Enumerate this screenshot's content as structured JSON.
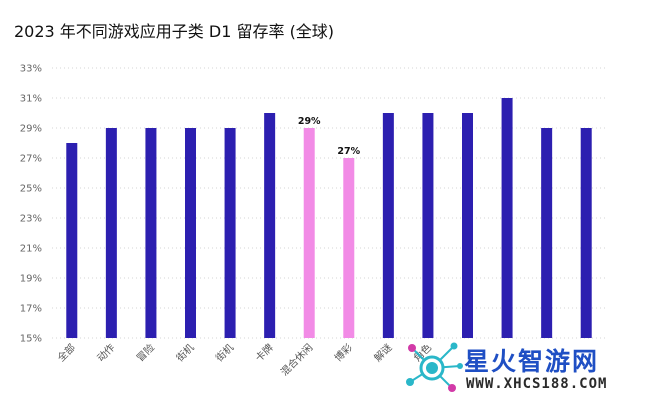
{
  "title": "2023 年不同游戏应用子类 D1 留存率 (全球)",
  "colors": {
    "bar": "#2c1fb0",
    "highlight": "#f28be6",
    "grid": "#d6d6d6",
    "watermark_blue": "#1f4fc4",
    "watermark_teal": "#2ab7c9"
  },
  "watermark": {
    "brand": "星火智游网",
    "url": "WWW.XHCS188.COM"
  },
  "chart_data": {
    "type": "bar",
    "title": "2023 年不同游戏应用子类 D1 留存率 (全球)",
    "xlabel": "",
    "ylabel": "",
    "ylim": [
      15,
      33
    ],
    "yticks": [
      15,
      17,
      19,
      21,
      23,
      25,
      27,
      29,
      31,
      33
    ],
    "ytick_labels": [
      "15%",
      "17%",
      "19%",
      "21%",
      "23%",
      "25%",
      "27%",
      "29%",
      "31%",
      "33%"
    ],
    "grid": true,
    "categories": [
      "全部",
      "动作",
      "冒险",
      "街机",
      "街机",
      "卡牌",
      "混合休闲",
      "博彩",
      "解谜",
      "角色",
      "",
      "",
      "",
      ""
    ],
    "values": [
      28,
      29,
      29,
      29,
      29,
      30,
      29,
      27,
      30,
      30,
      30,
      31,
      29,
      29
    ],
    "highlighted": [
      6,
      7
    ],
    "data_labels": [
      {
        "index": 6,
        "text": "29%"
      },
      {
        "index": 7,
        "text": "27%"
      }
    ]
  }
}
